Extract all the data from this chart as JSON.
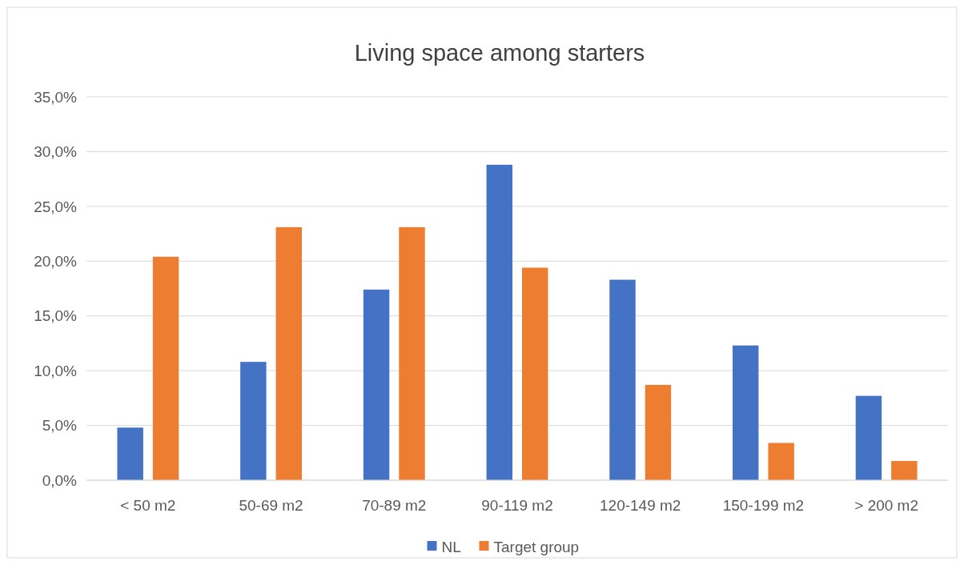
{
  "chart_data": {
    "type": "bar",
    "title": "Living space among starters",
    "categories": [
      "< 50 m2",
      "50-69 m2",
      "70-89 m2",
      "90-119 m2",
      "120-149 m2",
      "150-199 m2",
      "> 200 m2"
    ],
    "series": [
      {
        "name": "NL",
        "color": "#4472c4",
        "values": [
          4.8,
          10.8,
          17.4,
          28.8,
          18.3,
          12.3,
          7.7
        ]
      },
      {
        "name": "Target group",
        "color": "#ed7d31",
        "values": [
          20.4,
          23.1,
          23.1,
          19.4,
          8.7,
          3.4,
          1.75
        ]
      }
    ],
    "ylim": [
      0,
      35
    ],
    "yticks": [
      {
        "value": 0,
        "label": "0,0%"
      },
      {
        "value": 5,
        "label": "5,0%"
      },
      {
        "value": 10,
        "label": "10,0%"
      },
      {
        "value": 15,
        "label": "15,0%"
      },
      {
        "value": 20,
        "label": "20,0%"
      },
      {
        "value": 25,
        "label": "25,0%"
      },
      {
        "value": 30,
        "label": "30,0%"
      },
      {
        "value": 35,
        "label": "35,0%"
      }
    ],
    "grid": "y",
    "legend": "bottom"
  }
}
